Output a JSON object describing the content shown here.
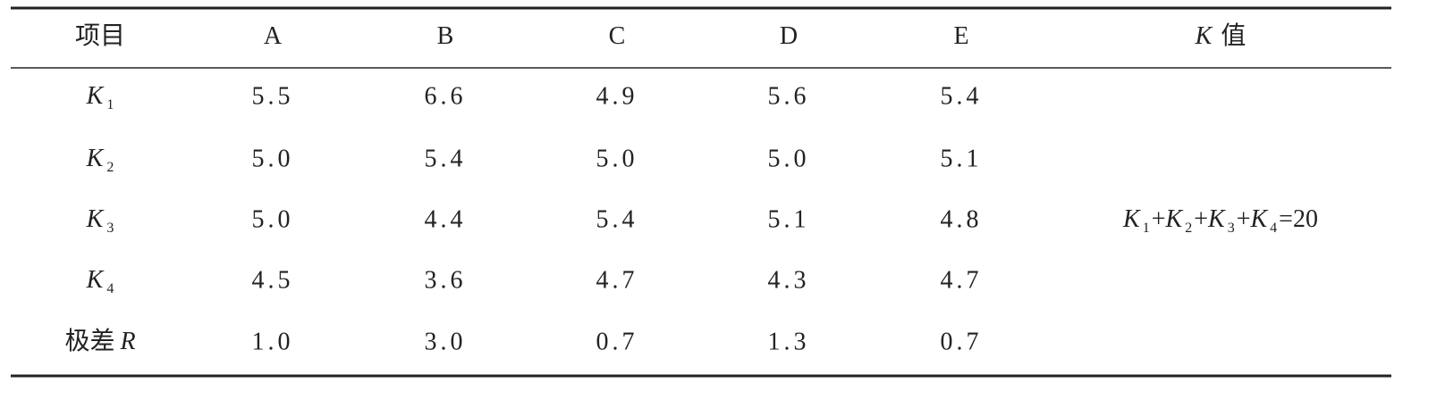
{
  "table": {
    "header": [
      "项目",
      "A",
      "B",
      "C",
      "D",
      "E",
      {
        "italic": "K",
        "text": "值"
      }
    ],
    "rows": [
      {
        "label": {
          "italic": "K",
          "sub": "1"
        },
        "values": [
          "5.5",
          "6.6",
          "4.9",
          "5.6",
          "5.4"
        ]
      },
      {
        "label": {
          "italic": "K",
          "sub": "2"
        },
        "values": [
          "5.0",
          "5.4",
          "5.0",
          "5.0",
          "5.1"
        ]
      },
      {
        "label": {
          "italic": "K",
          "sub": "3"
        },
        "values": [
          "5.0",
          "4.4",
          "5.4",
          "5.1",
          "4.8"
        ]
      },
      {
        "label": {
          "italic": "K",
          "sub": "4"
        },
        "values": [
          "4.5",
          "3.6",
          "4.7",
          "4.3",
          "4.7"
        ]
      },
      {
        "label": {
          "text": "极差",
          "italic": "R"
        },
        "values": [
          "1.0",
          "3.0",
          "0.7",
          "1.3",
          "0.7"
        ]
      }
    ],
    "k_value": [
      {
        "italic": "K",
        "sub": "1"
      },
      {
        "text": "+"
      },
      {
        "italic": "K",
        "sub": "2"
      },
      {
        "text": "+"
      },
      {
        "italic": "K",
        "sub": "3"
      },
      {
        "text": "+"
      },
      {
        "italic": "K",
        "sub": "4"
      },
      {
        "text": "=20"
      }
    ]
  }
}
